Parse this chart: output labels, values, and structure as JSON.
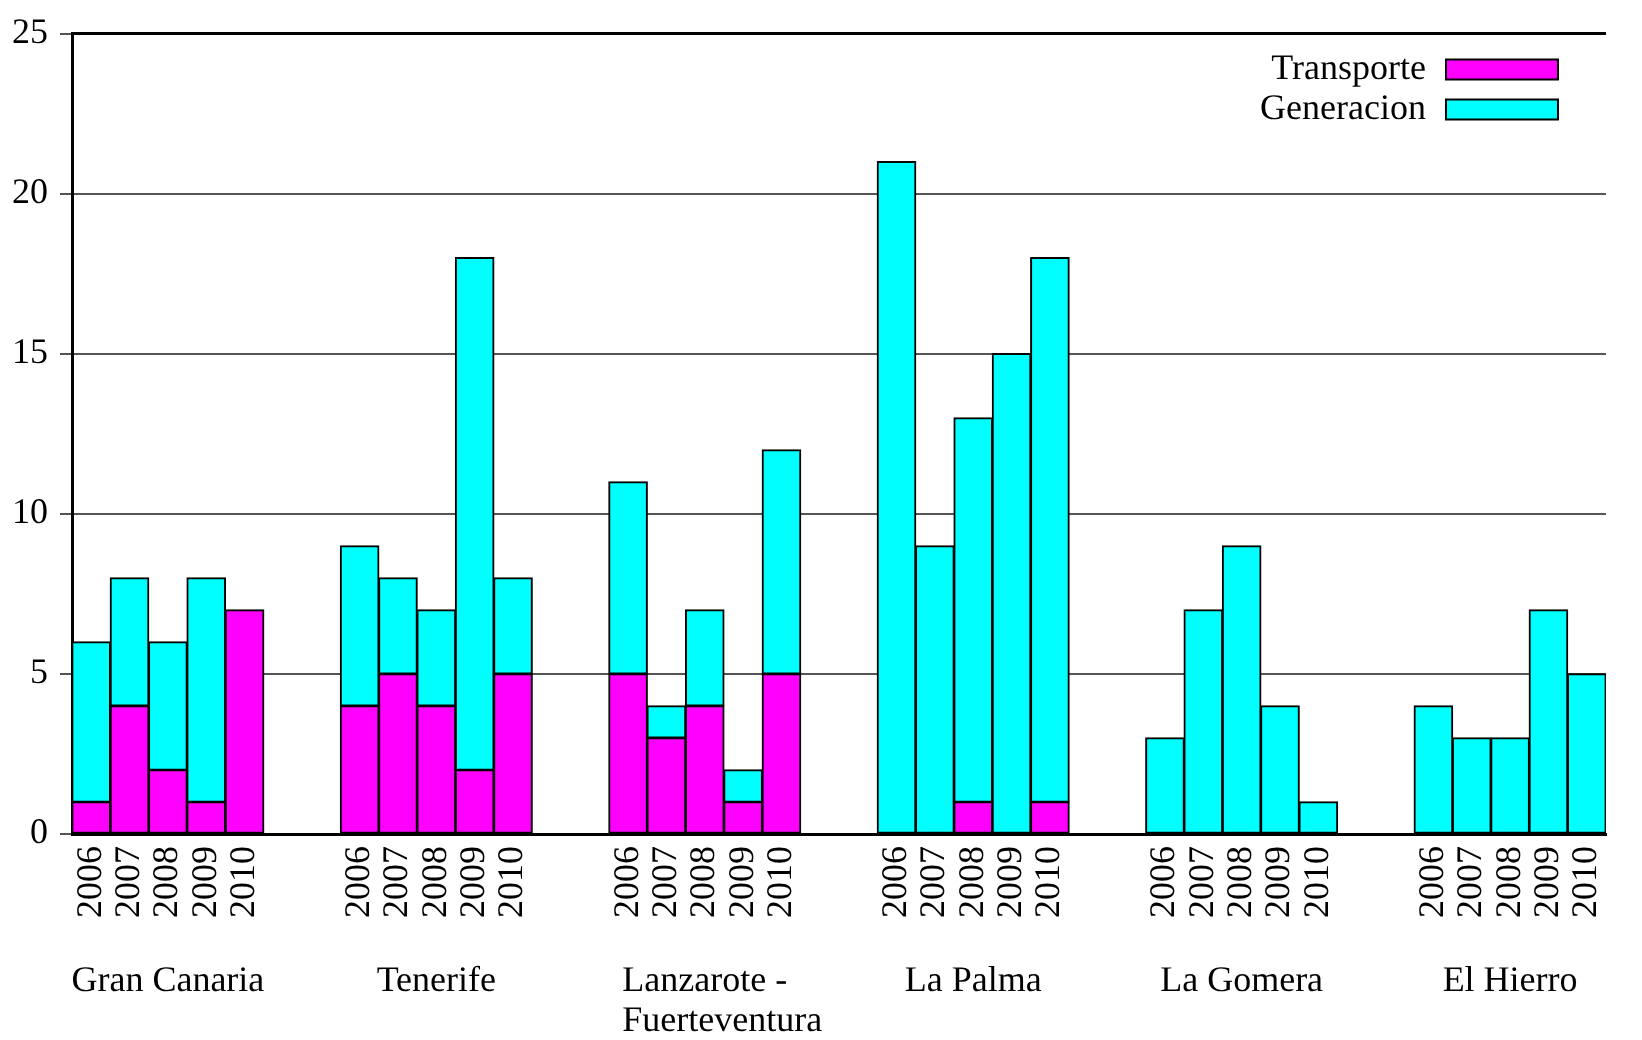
{
  "chart_data": {
    "type": "bar",
    "stacked": true,
    "categories": [
      "2006",
      "2007",
      "2008",
      "2009",
      "2010",
      null,
      null,
      "2006",
      "2007",
      "2008",
      "2009",
      "2010",
      null,
      null,
      "2006",
      "2007",
      "2008",
      "2009",
      "2010",
      null,
      null,
      "2006",
      "2007",
      "2008",
      "2009",
      "2010",
      null,
      null,
      "2006",
      "2007",
      "2008",
      "2009",
      "2010",
      null,
      null,
      "2006",
      "2007",
      "2008",
      "2009",
      "2010"
    ],
    "series": [
      {
        "name": "Transporte",
        "color": "#ff00ff",
        "values": [
          1,
          4,
          2,
          1,
          7,
          null,
          null,
          4,
          5,
          4,
          2,
          5,
          null,
          null,
          5,
          3,
          4,
          1,
          5,
          null,
          null,
          0,
          0,
          1,
          0,
          1,
          null,
          null,
          0,
          0,
          0,
          0,
          0,
          null,
          null,
          0,
          0,
          0,
          0,
          0
        ]
      },
      {
        "name": "Generacion",
        "color": "#00ffff",
        "values": [
          5,
          4,
          4,
          7,
          0,
          null,
          null,
          5,
          3,
          3,
          16,
          3,
          null,
          null,
          6,
          1,
          3,
          1,
          7,
          null,
          null,
          21,
          9,
          12,
          15,
          17,
          null,
          null,
          3,
          7,
          9,
          4,
          1,
          null,
          null,
          4,
          3,
          3,
          7,
          5
        ]
      }
    ],
    "annotations": [
      "Gran Canaria",
      "Tenerife",
      "Lanzarote - Fuerteventura",
      "La Palma",
      "La Gomera",
      "El Hierro"
    ],
    "ylim": [
      0,
      25
    ],
    "yticks": [
      0,
      5,
      10,
      15,
      20,
      25
    ],
    "grid": "y",
    "legend": "top right"
  }
}
